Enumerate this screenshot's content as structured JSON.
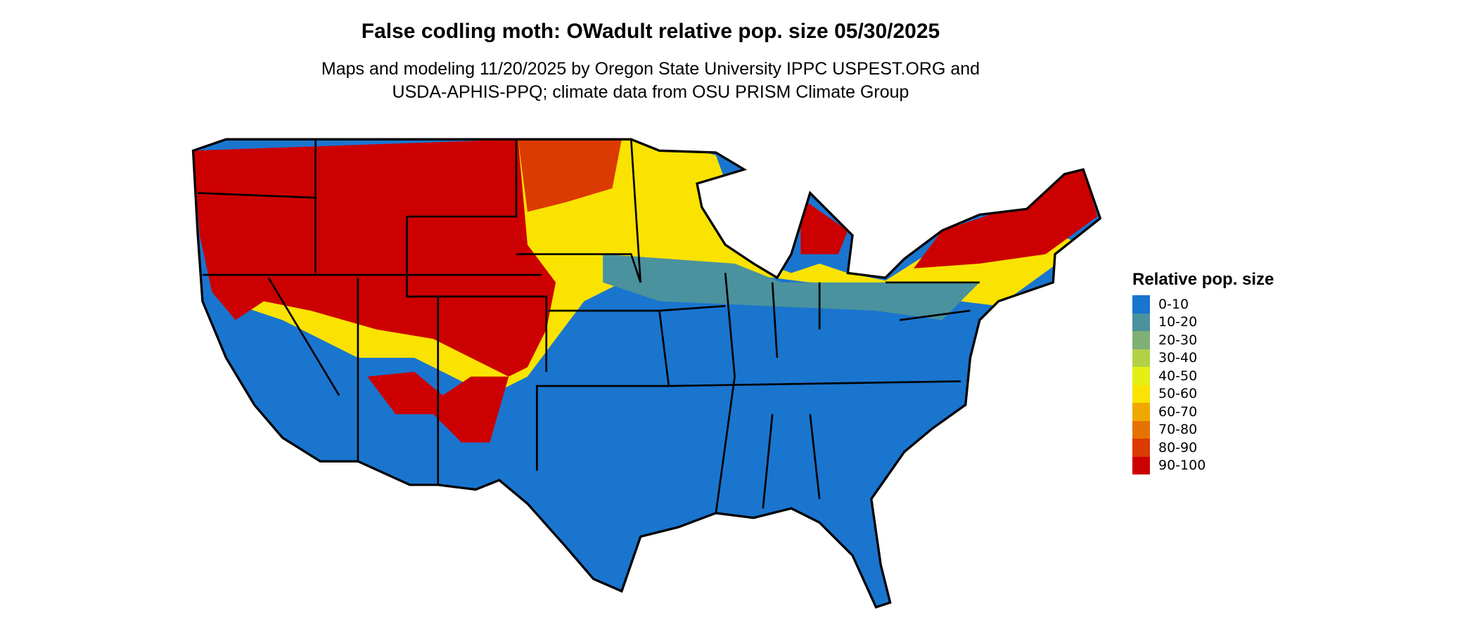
{
  "title": "False codling moth: OWadult relative pop. size 05/30/2025",
  "subtitle_line1": "Maps and modeling 11/20/2025 by Oregon State University IPPC USPEST.ORG and",
  "subtitle_line2": "USDA-APHIS-PPQ; climate data from OSU PRISM Climate Group",
  "legend": {
    "title": "Relative pop. size",
    "items": [
      {
        "label": "0-10",
        "color": "#1a75cf"
      },
      {
        "label": "10-20",
        "color": "#4a929e"
      },
      {
        "label": "20-30",
        "color": "#7fb076"
      },
      {
        "label": "30-40",
        "color": "#b2d146"
      },
      {
        "label": "40-50",
        "color": "#e4f014"
      },
      {
        "label": "50-60",
        "color": "#fae300"
      },
      {
        "label": "60-70",
        "color": "#f0a800"
      },
      {
        "label": "70-80",
        "color": "#e57200"
      },
      {
        "label": "80-90",
        "color": "#db3a00"
      },
      {
        "label": "90-100",
        "color": "#cc0000"
      }
    ]
  }
}
